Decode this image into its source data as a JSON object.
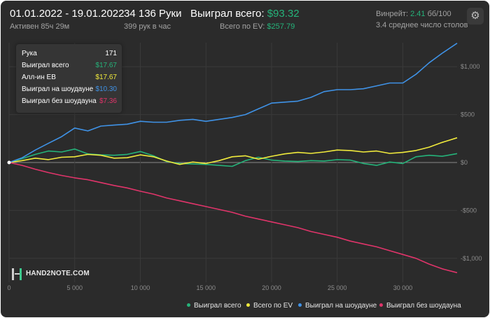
{
  "header": {
    "date_range": "01.01.2022 - 19.01.2022",
    "active": "Активен 85ч 29м",
    "hands": "34 136 Руки",
    "hands_per_hour": "399 рук в час",
    "won_total_label": "Выиграл всего: ",
    "won_total_value": "$93.32",
    "ev_label": "Всего по EV: ",
    "ev_value": "$257.79",
    "winrate_label": "Винрейт: ",
    "winrate_value": "2.41",
    "winrate_unit": " бб/100",
    "tables": "3.4 среднее число столов"
  },
  "settings_icon": "gear-icon",
  "tooltip": {
    "hand_label": "Рука",
    "hand_value": "171",
    "rows": [
      {
        "label": "Выиграл всего",
        "value": "$17.67",
        "color": "#25b37a"
      },
      {
        "label": "Алл-ин ЕВ",
        "value": "$17.67",
        "color": "#f0ea3c"
      },
      {
        "label": "Выиграл на шоудауне",
        "value": "$10.30",
        "color": "#3f92e6"
      },
      {
        "label": "Выиграл без шоудауна",
        "value": "$7.36",
        "color": "#e0346a"
      }
    ]
  },
  "logo": {
    "text": "HAND2NOTE.COM"
  },
  "colors": {
    "background": "#2b2b2b",
    "grid": "#3a3a3a",
    "zero_line": "#8a8a8a",
    "axis_text": "#8c8c8c"
  },
  "chart_data": {
    "type": "line",
    "xlim": [
      0,
      34136
    ],
    "ylim": [
      -1250,
      1250
    ],
    "x_ticks": [
      0,
      5000,
      10000,
      15000,
      20000,
      25000,
      30000
    ],
    "x_tick_labels": [
      "0",
      "5 000",
      "10 000",
      "15 000",
      "20 000",
      "25 000",
      "30 000"
    ],
    "y_ticks": [
      1000,
      500,
      0,
      -500,
      -1000
    ],
    "y_tick_labels": [
      "$1,000",
      "$500",
      "$0",
      "-$500",
      "-$1,000"
    ],
    "grid": true,
    "legend_position": "bottom-right",
    "series": [
      {
        "name": "Выиграл всего",
        "color": "#25b37a",
        "x": [
          0,
          1000,
          2000,
          3000,
          4000,
          5000,
          6000,
          7000,
          8000,
          9000,
          10000,
          11000,
          12000,
          13000,
          14000,
          15000,
          16000,
          17000,
          18000,
          19000,
          20000,
          21000,
          22000,
          23000,
          24000,
          25000,
          26000,
          27000,
          28000,
          29000,
          30000,
          31000,
          32000,
          33000,
          34136
        ],
        "y": [
          0,
          40,
          85,
          120,
          110,
          140,
          90,
          80,
          75,
          85,
          115,
          70,
          10,
          -10,
          -15,
          -20,
          -30,
          -40,
          20,
          55,
          25,
          15,
          10,
          20,
          15,
          30,
          25,
          -10,
          -30,
          5,
          -10,
          60,
          75,
          65,
          93
        ]
      },
      {
        "name": "Всего по EV",
        "color": "#f0ea3c",
        "x": [
          0,
          1000,
          2000,
          3000,
          4000,
          5000,
          6000,
          7000,
          8000,
          9000,
          10000,
          11000,
          12000,
          13000,
          14000,
          15000,
          16000,
          17000,
          18000,
          19000,
          20000,
          21000,
          22000,
          23000,
          24000,
          25000,
          26000,
          27000,
          28000,
          29000,
          30000,
          31000,
          32000,
          33000,
          34136
        ],
        "y": [
          0,
          20,
          45,
          30,
          55,
          60,
          85,
          75,
          45,
          50,
          80,
          60,
          15,
          -20,
          5,
          -10,
          20,
          60,
          70,
          35,
          65,
          90,
          105,
          95,
          110,
          130,
          125,
          110,
          120,
          95,
          105,
          125,
          160,
          210,
          258
        ]
      },
      {
        "name": "Выиграл на шоудауне",
        "color": "#3f92e6",
        "x": [
          0,
          1000,
          2000,
          3000,
          4000,
          5000,
          6000,
          7000,
          8000,
          9000,
          10000,
          11000,
          12000,
          13000,
          14000,
          15000,
          16000,
          17000,
          18000,
          19000,
          20000,
          21000,
          22000,
          23000,
          24000,
          25000,
          26000,
          27000,
          28000,
          29000,
          30000,
          31000,
          32000,
          33000,
          34136
        ],
        "y": [
          0,
          50,
          130,
          200,
          270,
          360,
          330,
          380,
          390,
          400,
          430,
          420,
          420,
          440,
          450,
          430,
          450,
          470,
          500,
          560,
          620,
          630,
          640,
          680,
          740,
          760,
          760,
          770,
          800,
          830,
          830,
          920,
          1040,
          1140,
          1245
        ]
      },
      {
        "name": "Выиграл без шоудауна",
        "color": "#e0346a",
        "x": [
          0,
          1000,
          2000,
          3000,
          4000,
          5000,
          6000,
          7000,
          8000,
          9000,
          10000,
          11000,
          12000,
          13000,
          14000,
          15000,
          16000,
          17000,
          18000,
          19000,
          20000,
          21000,
          22000,
          23000,
          24000,
          25000,
          26000,
          27000,
          28000,
          29000,
          30000,
          31000,
          32000,
          33000,
          34136
        ],
        "y": [
          0,
          -30,
          -70,
          -105,
          -135,
          -160,
          -180,
          -210,
          -240,
          -265,
          -300,
          -330,
          -370,
          -400,
          -430,
          -460,
          -490,
          -520,
          -560,
          -590,
          -620,
          -650,
          -680,
          -720,
          -750,
          -780,
          -820,
          -850,
          -880,
          -920,
          -960,
          -1000,
          -1060,
          -1110,
          -1150
        ]
      }
    ]
  }
}
